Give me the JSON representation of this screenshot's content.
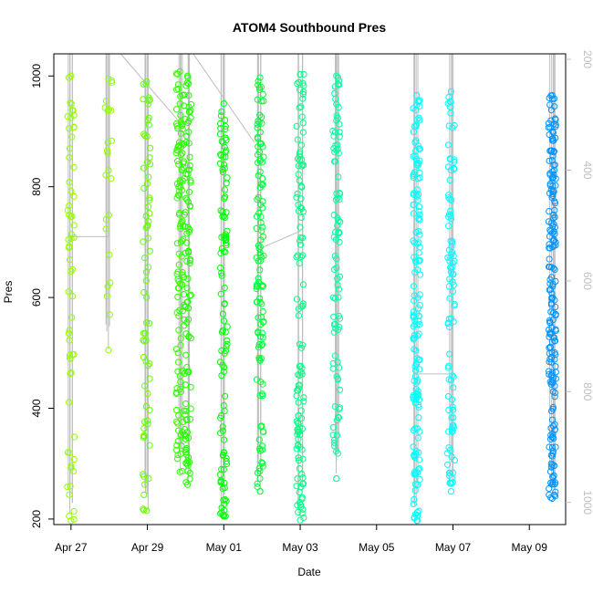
{
  "chart_data": {
    "type": "scatter",
    "title": "ATOM4 Southbound Pres",
    "xlabel": "Date",
    "ylabel": "Pres",
    "x_ticks": [
      "Apr 27",
      "Apr 29",
      "May 01",
      "May 03",
      "May 05",
      "May 07",
      "May 09"
    ],
    "y_ticks": [
      "200",
      "400",
      "600",
      "800",
      "1000"
    ],
    "y2_ticks": [
      "200",
      "400",
      "600",
      "800",
      "1000"
    ],
    "ylim": [
      190,
      1040
    ],
    "y2lim": [
      1040,
      190
    ],
    "xlim_days": [
      -0.45,
      12.95
    ],
    "x_origin_label": "Apr 27",
    "secondary_axis": "right, reversed, grey",
    "colors": {
      "point_start": "#88ff00",
      "point_mid_green": "#00ff40",
      "point_teal": "#00ffaa",
      "point_cyan": "#00ffff",
      "point_end": "#0099ff",
      "track": "#bdbdbd"
    },
    "profiles": [
      {
        "day": 0.0,
        "top": 1000,
        "bottom": 197,
        "n": 60,
        "hue": 0.24
      },
      {
        "day": 0.98,
        "top": 995,
        "bottom": 505,
        "n": 22,
        "hue": 0.24
      },
      {
        "day": 1.98,
        "top": 990,
        "bottom": 215,
        "n": 70,
        "hue": 0.27
      },
      {
        "day": 2.85,
        "top": 1008,
        "bottom": 285,
        "n": 110,
        "hue": 0.3
      },
      {
        "day": 3.05,
        "top": 1000,
        "bottom": 262,
        "n": 110,
        "hue": 0.31
      },
      {
        "day": 4.0,
        "top": 950,
        "bottom": 205,
        "n": 110,
        "hue": 0.34
      },
      {
        "day": 4.95,
        "top": 997,
        "bottom": 250,
        "n": 120,
        "hue": 0.37
      },
      {
        "day": 6.0,
        "top": 1003,
        "bottom": 198,
        "n": 120,
        "hue": 0.42
      },
      {
        "day": 6.95,
        "top": 1000,
        "bottom": 273,
        "n": 90,
        "hue": 0.44
      },
      {
        "day": 9.05,
        "top": 965,
        "bottom": 197,
        "n": 160,
        "hue": 0.5
      },
      {
        "day": 9.95,
        "top": 972,
        "bottom": 250,
        "n": 100,
        "hue": 0.5
      },
      {
        "day": 12.6,
        "top": 965,
        "bottom": 237,
        "n": 200,
        "hue": 0.57
      }
    ]
  }
}
